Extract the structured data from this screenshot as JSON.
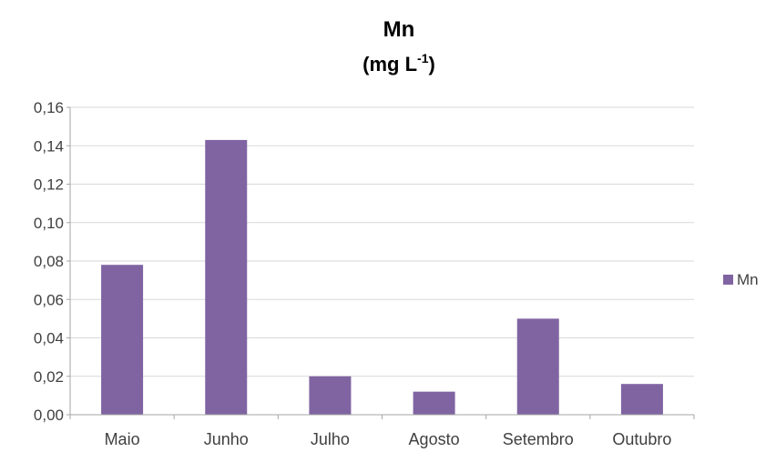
{
  "chart_data": {
    "type": "bar",
    "title": "Mn",
    "subtitle_main": "(mg L",
    "subtitle_sup": "-1",
    "subtitle_end": ")",
    "categories": [
      "Maio",
      "Junho",
      "Julho",
      "Agosto",
      "Setembro",
      "Outubro"
    ],
    "series": [
      {
        "name": "Mn",
        "values": [
          0.078,
          0.143,
          0.02,
          0.012,
          0.05,
          0.016
        ],
        "color": "#8064A2"
      }
    ],
    "ylim": [
      0,
      0.16
    ],
    "yticks": [
      "0,00",
      "0,02",
      "0,04",
      "0,06",
      "0,08",
      "0,10",
      "0,12",
      "0,14",
      "0,16"
    ],
    "ytick_values": [
      0,
      0.02,
      0.04,
      0.06,
      0.08,
      0.1,
      0.12,
      0.14,
      0.16
    ],
    "grid": true,
    "legend": "right",
    "gridline_color": "#D9D9D9",
    "axis_color": "#A6A6A6"
  }
}
